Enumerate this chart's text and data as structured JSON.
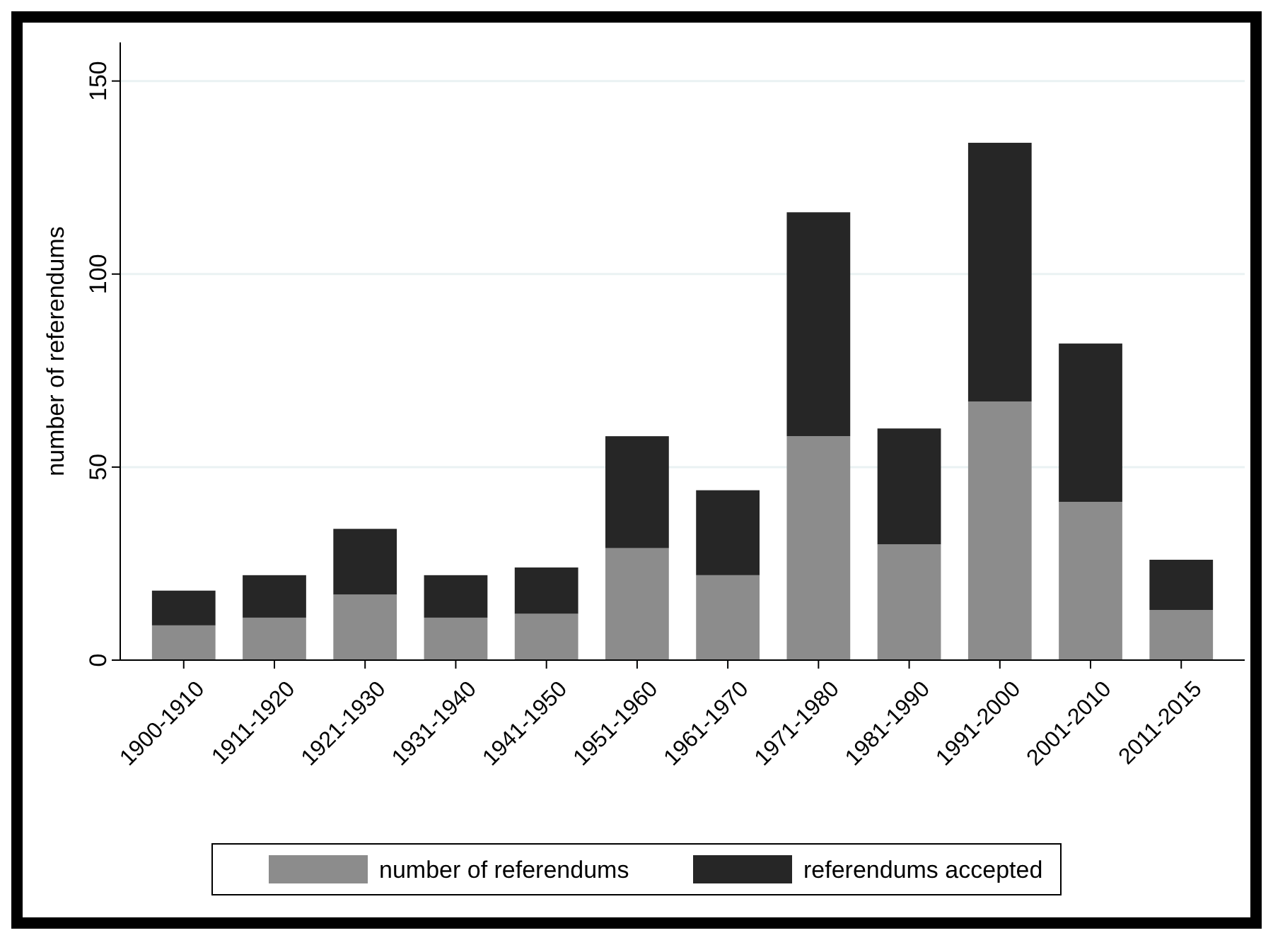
{
  "chart_data": {
    "type": "bar",
    "stacked": true,
    "ylabel": "number of referendums",
    "categories": [
      "1900-1910",
      "1911-1920",
      "1921-1930",
      "1931-1940",
      "1941-1950",
      "1951-1960",
      "1961-1970",
      "1971-1980",
      "1981-1990",
      "1991-2000",
      "2001-2010",
      "2011-2015"
    ],
    "series": [
      {
        "name": "number of referendums",
        "color": "#8c8c8c",
        "values": [
          9,
          11,
          17,
          11,
          12,
          29,
          22,
          58,
          30,
          67,
          41,
          13
        ]
      },
      {
        "name": "referendums accepted",
        "color": "#262626",
        "values": [
          9,
          11,
          17,
          11,
          12,
          29,
          22,
          58,
          30,
          67,
          41,
          13
        ]
      }
    ],
    "ylim": [
      0,
      160
    ],
    "yticks": [
      0,
      50,
      100,
      150
    ],
    "grid": "y",
    "legend": "bottom"
  }
}
